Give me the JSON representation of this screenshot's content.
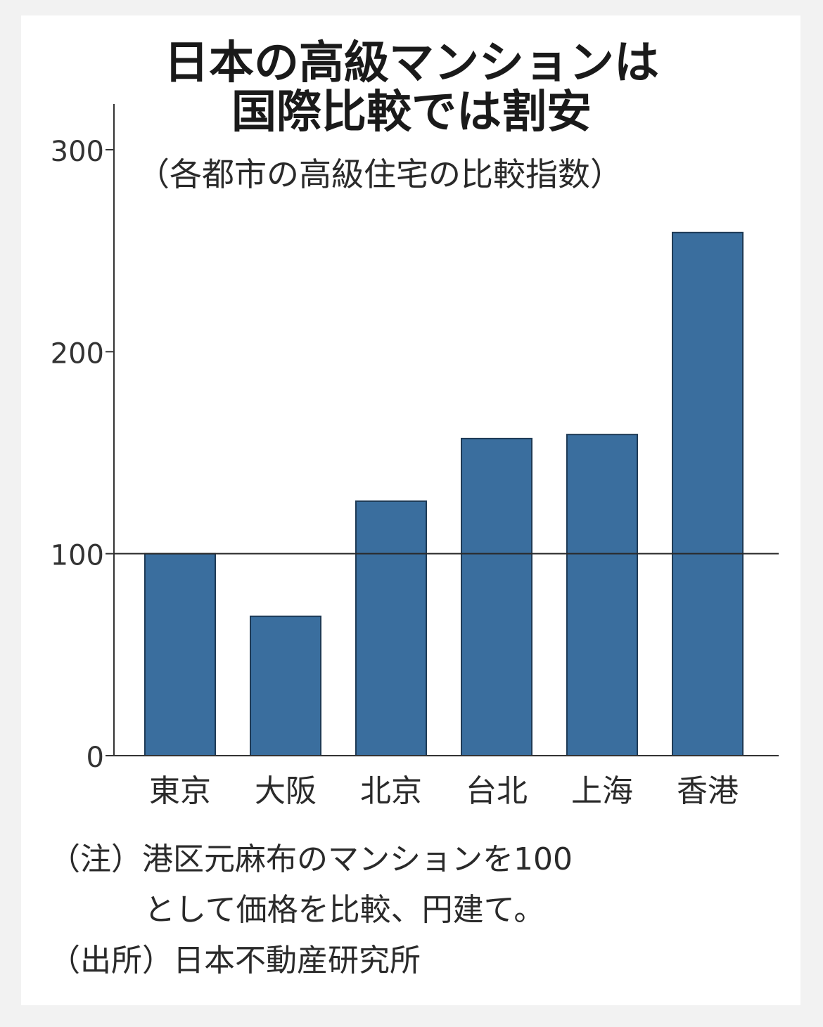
{
  "chart_data": {
    "type": "bar",
    "title_line1": "日本の高級マンションは",
    "title_line2": "国際比較では割安",
    "subtitle": "（各都市の高級住宅の比較指数）",
    "categories": [
      "東京",
      "大阪",
      "北京",
      "台北",
      "上海",
      "香港"
    ],
    "values": [
      100,
      69,
      126,
      157,
      159,
      259
    ],
    "y_ticks": [
      "0",
      "100",
      "200",
      "300"
    ],
    "ylim": [
      0,
      320
    ],
    "reference_line": 100,
    "bar_color": "#3a6e9e",
    "grid": false
  },
  "notes": {
    "note_line1": "（注）港区元麻布のマンションを100",
    "note_line2": "として価格を比較、円建て。",
    "source": "（出所）日本不動産研究所"
  }
}
